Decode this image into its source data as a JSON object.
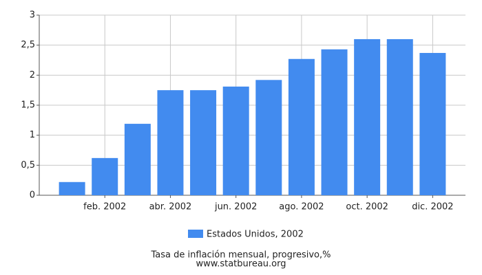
{
  "chart_data": {
    "type": "bar",
    "categories": [
      null,
      "feb. 2002",
      null,
      "abr. 2002",
      null,
      "jun. 2002",
      null,
      "ago. 2002",
      null,
      "oct. 2002",
      null,
      "dic. 2002"
    ],
    "series": [
      {
        "name": "Estados Unidos, 2002",
        "color": "#428bef",
        "values": [
          0.22,
          0.62,
          1.19,
          1.75,
          1.75,
          1.81,
          1.92,
          2.27,
          2.43,
          2.6,
          2.6,
          2.37
        ]
      }
    ],
    "ylim": [
      0,
      3
    ],
    "yticks": [
      0,
      {
        "value": 0.5,
        "label": "0,5"
      },
      1,
      {
        "value": 1.5,
        "label": "1,5"
      },
      2,
      {
        "value": 2.5,
        "label": "2,5"
      },
      3
    ],
    "grid": true,
    "legend": "bottom",
    "title": "Tasa de inflación mensual, progresivo,%",
    "source": "www.statbureau.org"
  }
}
